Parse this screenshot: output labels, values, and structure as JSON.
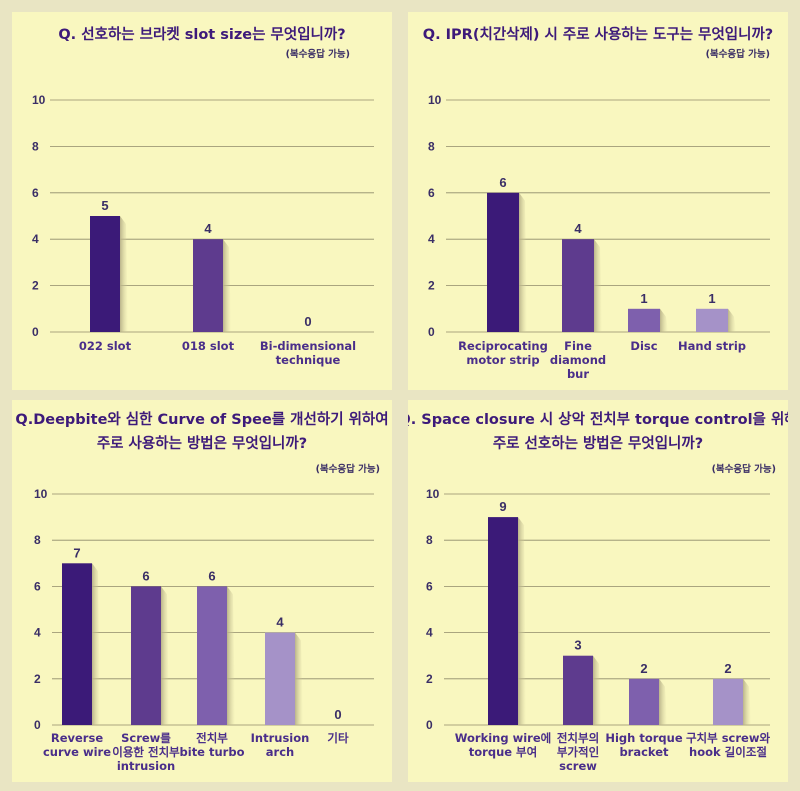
{
  "chart_data": [
    {
      "type": "bar",
      "title": [
        "Q. 선호하는 브라켓 slot size는 무엇입니까?"
      ],
      "note": "(복수응답 가능)",
      "categories": [
        [
          "022 slot"
        ],
        [
          "018 slot"
        ],
        [
          "Bi-dimensional",
          "technique"
        ]
      ],
      "values": [
        5,
        4,
        0
      ],
      "yticks": [
        "0",
        "2",
        "4",
        "6",
        "8",
        "10"
      ],
      "ylim": [
        0,
        10
      ],
      "grid": true
    },
    {
      "type": "bar",
      "title": [
        "Q. IPR(치간삭제) 시 주로 사용하는 도구는 무엇입니까?"
      ],
      "note": "(복수응답 가능)",
      "categories": [
        [
          "Reciprocating",
          "motor strip"
        ],
        [
          "Fine",
          "diamond",
          "bur"
        ],
        [
          "Disc"
        ],
        [
          "Hand strip"
        ]
      ],
      "values": [
        6,
        4,
        1,
        1
      ],
      "yticks": [
        "0",
        "2",
        "4",
        "6",
        "8",
        "10"
      ],
      "ylim": [
        0,
        10
      ],
      "grid": true
    },
    {
      "type": "bar",
      "title": [
        "Q.Deepbite와 심한 Curve of Spee를 개선하기 위하여",
        "주로 사용하는 방법은 무엇입니까?"
      ],
      "note": "(복수응답 가능)",
      "categories": [
        [
          "Reverse",
          "curve wire"
        ],
        [
          "Screw를",
          "이용한 전치부",
          "intrusion"
        ],
        [
          "전치부",
          "bite turbo"
        ],
        [
          "Intrusion",
          "arch"
        ],
        [
          "기타"
        ]
      ],
      "values": [
        7,
        6,
        6,
        4,
        0
      ],
      "yticks": [
        "0",
        "2",
        "4",
        "6",
        "8",
        "10"
      ],
      "ylim": [
        0,
        10
      ],
      "grid": true
    },
    {
      "type": "bar",
      "title": [
        "Q. Space closure 시 상악 전치부 torque control을 위해",
        "주로 선호하는 방법은 무엇입니까?"
      ],
      "note": "(복수응답 가능)",
      "categories": [
        [
          "Working wire에",
          "torque 부여"
        ],
        [
          "전치부의",
          "부가적인",
          "screw"
        ],
        [
          "High torque",
          "bracket"
        ],
        [
          "구치부 screw와",
          "hook 길이조절"
        ]
      ],
      "values": [
        9,
        3,
        2,
        2
      ],
      "yticks": [
        "0",
        "2",
        "4",
        "6",
        "8",
        "10"
      ],
      "ylim": [
        0,
        10
      ],
      "grid": true
    }
  ],
  "colors": {
    "background": "#e9e5c3",
    "panel": "#f9f7bf",
    "title": "#3d1a7a",
    "bars": [
      "#3b1a78",
      "#5e3b8e",
      "#7e60ad",
      "#a592c8"
    ],
    "shadow": "#d8d3a0"
  }
}
